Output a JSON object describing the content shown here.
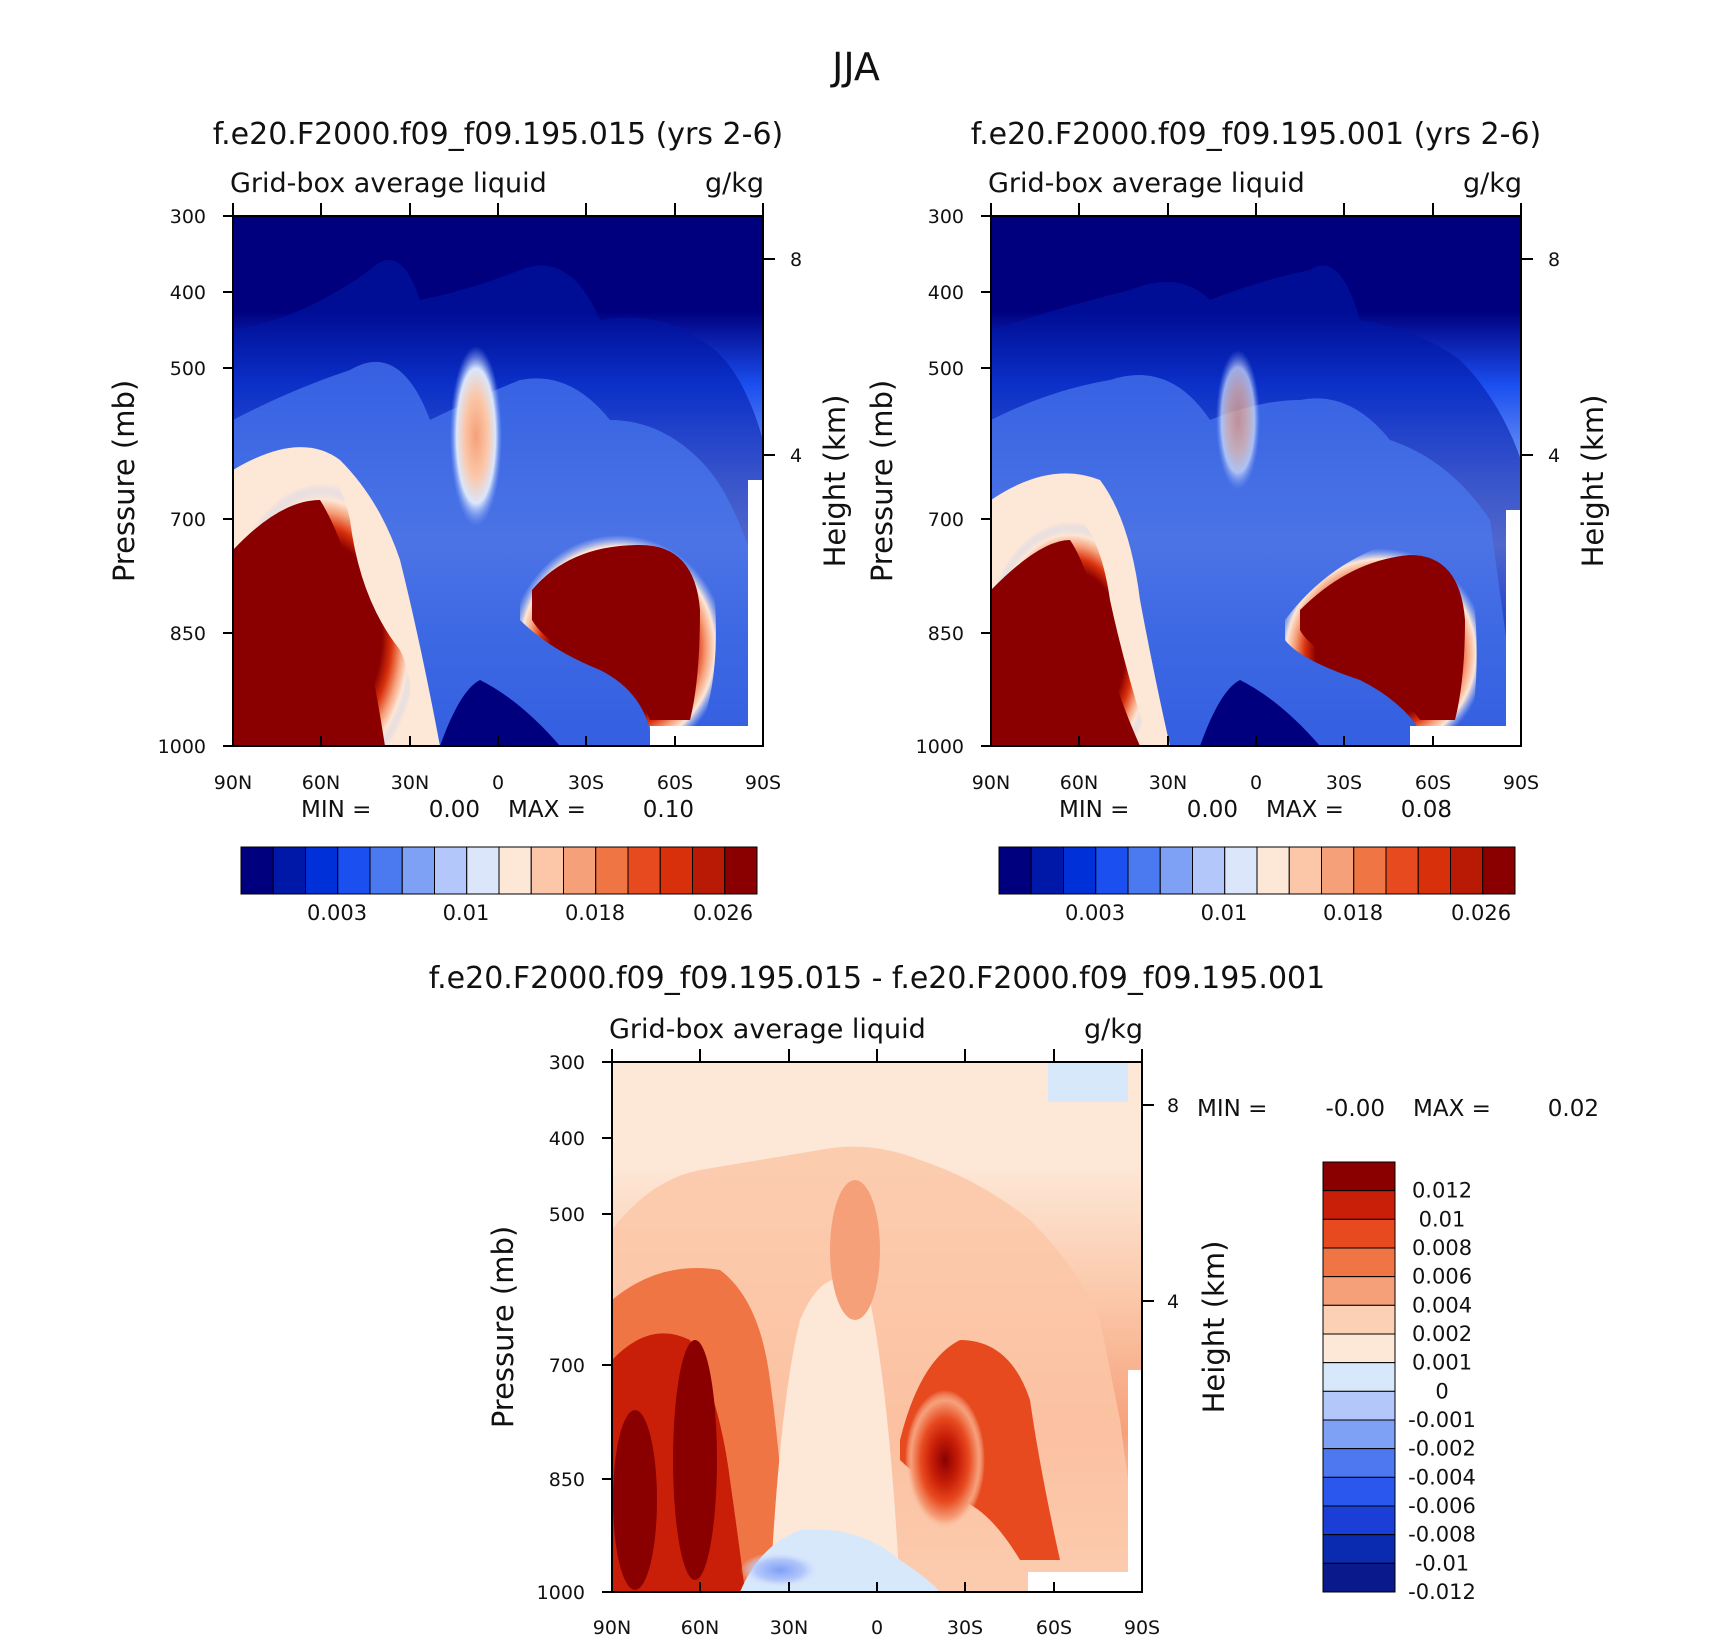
{
  "page_title": "JJA",
  "colors": {
    "seq": [
      "#00007f",
      "#0018a8",
      "#0030d8",
      "#1b4ff0",
      "#4a79f0",
      "#7ea0f5",
      "#b3c7fb",
      "#dbe6fb",
      "#fde7d6",
      "#fbc7a8",
      "#f6a07a",
      "#f07545",
      "#e84a20",
      "#d9300c",
      "#b81a06",
      "#8a0000"
    ],
    "div": [
      "#0a1a8c",
      "#0a2ab0",
      "#1b3fd6",
      "#2a57ee",
      "#4d78f0",
      "#7ea0f5",
      "#b3c7fb",
      "#d8e8fb",
      "#fde7d6",
      "#fbd0b5",
      "#f6a07a",
      "#f07545",
      "#e84a20",
      "#c91f08",
      "#8a0000"
    ]
  },
  "panels": [
    {
      "title": "f.e20.F2000.f09_f09.195.015 (yrs 2-6)",
      "left_label": "Grid-box average liquid",
      "right_label": "g/kg",
      "ylabel": "Pressure (mb)",
      "ylabel2": "Height (km)",
      "min_text": "MIN =",
      "min_value": "0.00",
      "max_text": "MAX =",
      "max_value": "0.10",
      "colorbar_labels": [
        "0.003",
        "0.01",
        "0.018",
        "0.026"
      ]
    },
    {
      "title": "f.e20.F2000.f09_f09.195.001 (yrs 2-6)",
      "left_label": "Grid-box average liquid",
      "right_label": "g/kg",
      "ylabel": "Pressure (mb)",
      "ylabel2": "Height (km)",
      "min_text": "MIN =",
      "min_value": "0.00",
      "max_text": "MAX =",
      "max_value": "0.08",
      "colorbar_labels": [
        "0.003",
        "0.01",
        "0.018",
        "0.026"
      ]
    },
    {
      "title": "f.e20.F2000.f09_f09.195.015 - f.e20.F2000.f09_f09.195.001",
      "left_label": "Grid-box average liquid",
      "right_label": "g/kg",
      "ylabel": "Pressure (mb)",
      "ylabel2": "Height (km)",
      "min_text": "MIN =",
      "min_value": "-0.00",
      "max_text": "MAX =",
      "max_value": "0.02",
      "colorbar_labels": [
        "0.012",
        "0.01",
        "0.008",
        "0.006",
        "0.004",
        "0.002",
        "0.001",
        "0",
        "-0.001",
        "-0.002",
        "-0.004",
        "-0.006",
        "-0.008",
        "-0.01",
        "-0.012"
      ]
    }
  ],
  "chart_data": [
    {
      "type": "heatmap",
      "title": "f.e20.F2000.f09_f09.195.015 (yrs 2-6)",
      "variable": "Grid-box average liquid",
      "units": "g/kg",
      "xlabel": "",
      "ylabel": "Pressure (mb)",
      "ylabel2": "Height (km)",
      "x_ticks": [
        "90N",
        "60N",
        "30N",
        "0",
        "30S",
        "60S",
        "90S"
      ],
      "y_ticks": [
        "300",
        "400",
        "500",
        "700",
        "850",
        "1000"
      ],
      "y_ticks_right": [
        "8",
        "4"
      ],
      "levels": [
        0.003,
        0.01,
        0.018,
        0.026
      ],
      "min": 0.0,
      "max": 0.1,
      "features": [
        {
          "lat": 65,
          "p_top": 690,
          "p_bottom": 1000,
          "intensity": "max"
        },
        {
          "lat": -35,
          "p_top": 720,
          "p_bottom": 960,
          "intensity": "max"
        },
        {
          "lat": 8,
          "p_top": 560,
          "p_bottom": 660,
          "intensity": "moderate"
        }
      ]
    },
    {
      "type": "heatmap",
      "title": "f.e20.F2000.f09_f09.195.001 (yrs 2-6)",
      "variable": "Grid-box average liquid",
      "units": "g/kg",
      "xlabel": "",
      "ylabel": "Pressure (mb)",
      "ylabel2": "Height (km)",
      "x_ticks": [
        "90N",
        "60N",
        "30N",
        "0",
        "30S",
        "60S",
        "90S"
      ],
      "y_ticks": [
        "300",
        "400",
        "500",
        "700",
        "850",
        "1000"
      ],
      "y_ticks_right": [
        "8",
        "4"
      ],
      "levels": [
        0.003,
        0.01,
        0.018,
        0.026
      ],
      "min": 0.0,
      "max": 0.08,
      "features": [
        {
          "lat": 65,
          "p_top": 730,
          "p_bottom": 1000,
          "intensity": "max"
        },
        {
          "lat": -45,
          "p_top": 740,
          "p_bottom": 960,
          "intensity": "max"
        },
        {
          "lat": 5,
          "p_top": 540,
          "p_bottom": 620,
          "intensity": "weak"
        }
      ]
    },
    {
      "type": "heatmap",
      "title": "f.e20.F2000.f09_f09.195.015 - f.e20.F2000.f09_f09.195.001",
      "variable": "Grid-box average liquid",
      "units": "g/kg",
      "xlabel": "",
      "ylabel": "Pressure (mb)",
      "ylabel2": "Height (km)",
      "x_ticks": [
        "90N",
        "60N",
        "30N",
        "0",
        "30S",
        "60S",
        "90S"
      ],
      "y_ticks": [
        "300",
        "400",
        "500",
        "700",
        "850",
        "1000"
      ],
      "y_ticks_right": [
        "8",
        "4"
      ],
      "levels": [
        -0.012,
        -0.01,
        -0.008,
        -0.006,
        -0.004,
        -0.002,
        -0.001,
        0,
        0.001,
        0.002,
        0.004,
        0.006,
        0.008,
        0.01,
        0.012
      ],
      "min": -0.0,
      "max": 0.02,
      "features": [
        {
          "lat": 65,
          "p_top": 760,
          "p_bottom": 1000,
          "intensity": "max"
        },
        {
          "lat": -22,
          "p_top": 760,
          "p_bottom": 880,
          "intensity": "high"
        },
        {
          "lat": 20,
          "p_top": 930,
          "p_bottom": 1000,
          "intensity": "negative"
        }
      ]
    }
  ]
}
